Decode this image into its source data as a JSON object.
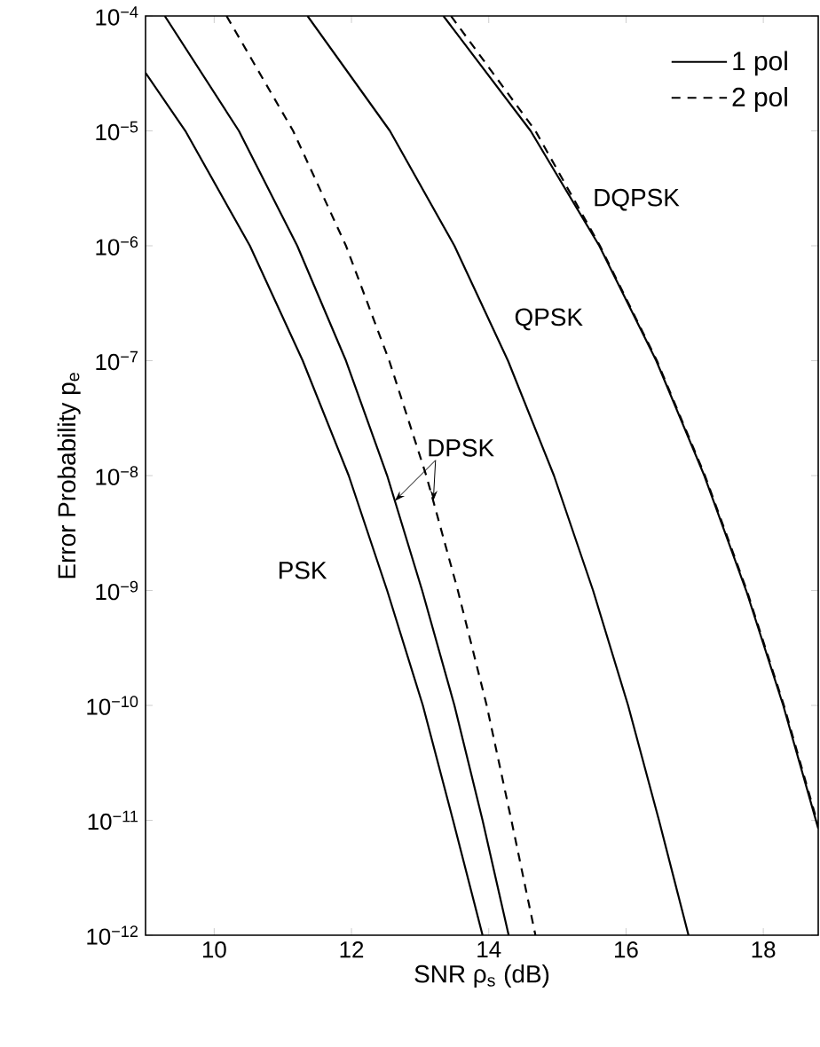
{
  "chart_data": {
    "type": "line",
    "xlabel": "SNR ρ$_{s}$ (dB)",
    "ylabel": "Error Probability p$_{e}$",
    "log": true,
    "legend": "top right",
    "xlim": [
      9,
      18.8
    ],
    "ylim": [
      1e-12,
      0.0001
    ],
    "xticks": [
      10,
      12,
      14,
      16,
      18
    ],
    "yticks": [
      {
        "value": 0.0001,
        "label": "10$^{−4}$"
      },
      {
        "value": 1e-05,
        "label": "10$^{−5}$"
      },
      {
        "value": 1e-06,
        "label": "10$^{−6}$"
      },
      {
        "value": 1e-07,
        "label": "10$^{−7}$"
      },
      {
        "value": 1e-08,
        "label": "10$^{−8}$"
      },
      {
        "value": 1e-09,
        "label": "10$^{−9}$"
      },
      {
        "value": 1e-10,
        "label": "10$^{−10}$"
      },
      {
        "value": 1e-11,
        "label": "10$^{−11}$"
      },
      {
        "value": 1e-12,
        "label": "10$^{−12}$"
      }
    ],
    "series": [
      {
        "color": "#000000",
        "line_style": "solid",
        "x": [
          9.0,
          9.58,
          10.52,
          11.29,
          11.96,
          12.52,
          13.04,
          13.48,
          13.91
        ],
        "values": [
          3.2e-05,
          1e-05,
          1e-06,
          1e-07,
          1e-08,
          1e-09,
          1e-10,
          1e-11,
          1e-12
        ]
      },
      {
        "name": "1 pol",
        "color": "#000000",
        "line_style": "solid",
        "x": [
          9.28,
          10.36,
          11.21,
          11.92,
          12.52,
          13.03,
          13.5,
          13.91,
          14.29
        ],
        "values": [
          0.0001,
          1e-05,
          1e-06,
          1e-07,
          1e-08,
          1e-09,
          1e-10,
          1e-11,
          1e-12
        ]
      },
      {
        "name": "2 pol",
        "color": "#000000",
        "line_style": "dashed",
        "x": [
          10.18,
          11.15,
          11.92,
          12.55,
          13.09,
          13.55,
          13.97,
          14.33,
          14.68
        ],
        "values": [
          0.0001,
          1e-05,
          1e-06,
          1e-07,
          1e-08,
          1e-09,
          1e-10,
          1e-11,
          1e-12
        ]
      },
      {
        "color": "#000000",
        "line_style": "solid",
        "x": [
          11.36,
          12.56,
          13.5,
          14.28,
          14.95,
          15.52,
          16.03,
          16.48,
          16.91
        ],
        "values": [
          0.0001,
          1e-05,
          1e-06,
          1e-07,
          1e-08,
          1e-09,
          1e-10,
          1e-11,
          1e-12
        ]
      },
      {
        "color": "#000000",
        "line_style": "solid",
        "x": [
          13.34,
          14.61,
          15.61,
          16.44,
          17.14,
          17.75,
          18.29,
          18.8
        ],
        "values": [
          0.0001,
          1e-05,
          1e-06,
          1e-07,
          1e-08,
          1e-09,
          1e-10,
          8.5e-12
        ]
      },
      {
        "color": "#000000",
        "line_style": "dashed",
        "x": [
          13.45,
          14.68,
          15.62,
          16.45,
          17.15,
          17.76,
          18.3,
          18.8
        ],
        "values": [
          0.0001,
          1e-05,
          1e-06,
          1e-07,
          1e-08,
          1e-09,
          1e-10,
          9e-12
        ]
      }
    ],
    "annotations": [
      "DQPSK",
      "QPSK",
      {
        "text": "DPSK",
        "x": 12.63,
        "y": 6e-09
      },
      "PSK"
    ]
  }
}
